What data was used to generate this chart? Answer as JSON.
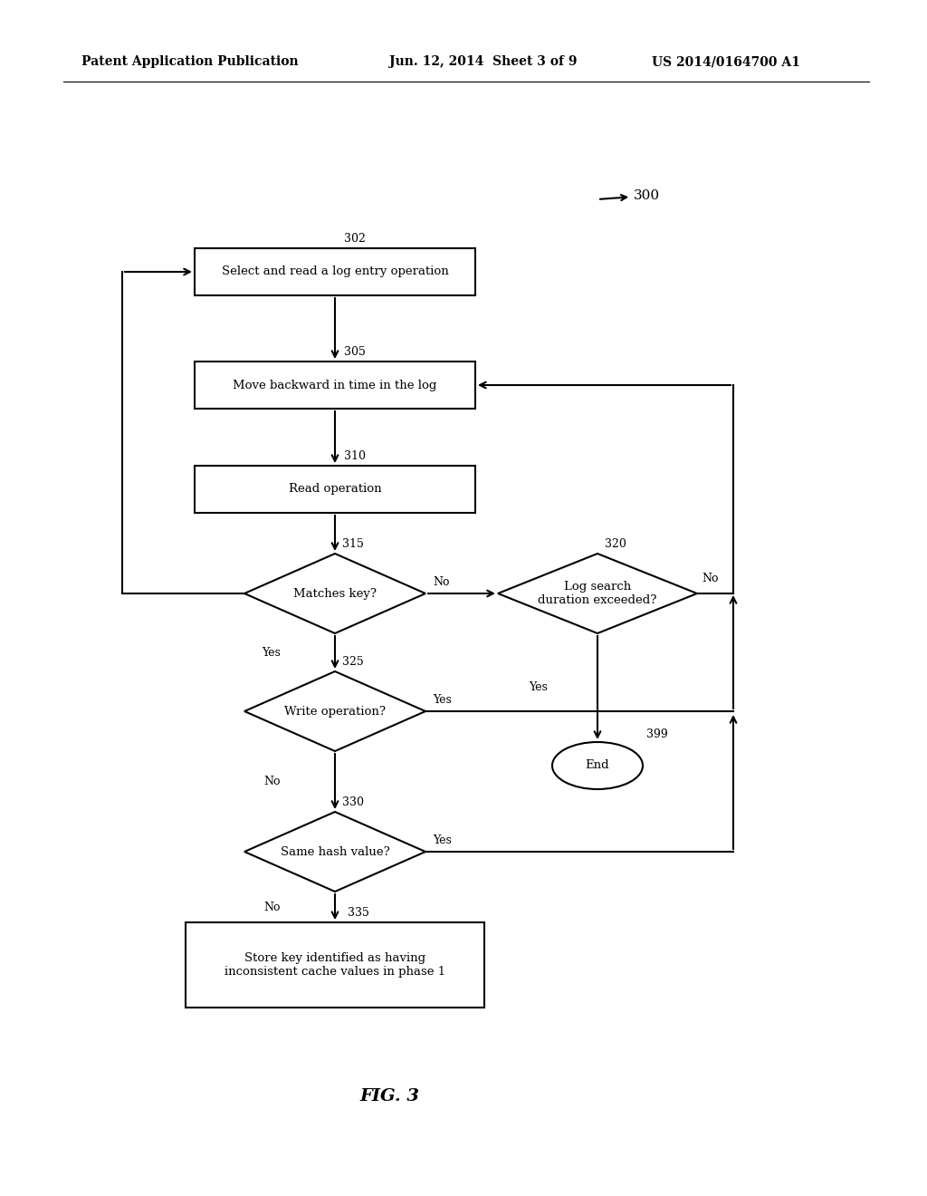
{
  "bg_color": "#ffffff",
  "header_left": "Patent Application Publication",
  "header_center": "Jun. 12, 2014  Sheet 3 of 9",
  "header_right": "US 2014/0164700 A1",
  "fig_label": "FIG. 3",
  "diagram_label": "300",
  "lw": 1.5,
  "font_size_node": 9.5,
  "font_size_label": 9,
  "font_size_header": 10,
  "font_size_fig": 14
}
